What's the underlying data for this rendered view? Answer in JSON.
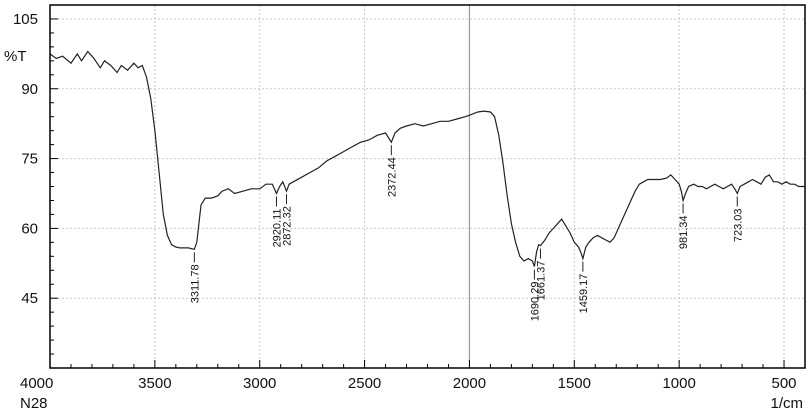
{
  "chart_data": {
    "type": "line",
    "title": "",
    "xlabel": "",
    "ylabel": "",
    "y_unit": "%T",
    "x_unit": "1/cm",
    "sample": "N28",
    "xlim": [
      4000,
      400
    ],
    "ylim": [
      30,
      108
    ],
    "x_ticks": [
      4000,
      3500,
      3000,
      2500,
      2000,
      1500,
      1000,
      500
    ],
    "y_ticks": [
      45,
      60,
      75,
      90,
      105
    ],
    "grid": true,
    "colors": {
      "line": "#222222",
      "grid": "#c8c8c8",
      "frame": "#000000"
    },
    "series": [
      {
        "points": [
          [
            4000,
            97.5
          ],
          [
            3970,
            96.5
          ],
          [
            3940,
            97
          ],
          [
            3900,
            95.5
          ],
          [
            3870,
            97.5
          ],
          [
            3850,
            96
          ],
          [
            3820,
            98
          ],
          [
            3790,
            96.5
          ],
          [
            3760,
            94.5
          ],
          [
            3740,
            96
          ],
          [
            3710,
            95
          ],
          [
            3680,
            93.5
          ],
          [
            3660,
            95
          ],
          [
            3630,
            94
          ],
          [
            3600,
            95.5
          ],
          [
            3580,
            94.5
          ],
          [
            3560,
            95
          ],
          [
            3540,
            92.5
          ],
          [
            3520,
            88
          ],
          [
            3500,
            81
          ],
          [
            3480,
            72
          ],
          [
            3460,
            63
          ],
          [
            3440,
            58.5
          ],
          [
            3420,
            56.5
          ],
          [
            3400,
            56
          ],
          [
            3380,
            55.8
          ],
          [
            3360,
            55.8
          ],
          [
            3340,
            55.8
          ],
          [
            3311.78,
            55.5
          ],
          [
            3300,
            57
          ],
          [
            3290,
            61
          ],
          [
            3280,
            65
          ],
          [
            3260,
            66.5
          ],
          [
            3230,
            66.5
          ],
          [
            3200,
            67
          ],
          [
            3180,
            68
          ],
          [
            3150,
            68.5
          ],
          [
            3120,
            67.5
          ],
          [
            3080,
            68
          ],
          [
            3040,
            68.5
          ],
          [
            3000,
            68.5
          ],
          [
            2970,
            69.5
          ],
          [
            2940,
            69.5
          ],
          [
            2920.11,
            67.5
          ],
          [
            2905,
            69
          ],
          [
            2890,
            70
          ],
          [
            2872.32,
            68
          ],
          [
            2860,
            69.5
          ],
          [
            2840,
            70
          ],
          [
            2800,
            71
          ],
          [
            2760,
            72
          ],
          [
            2720,
            73
          ],
          [
            2680,
            74.5
          ],
          [
            2640,
            75.5
          ],
          [
            2600,
            76.5
          ],
          [
            2560,
            77.5
          ],
          [
            2520,
            78.5
          ],
          [
            2480,
            79
          ],
          [
            2440,
            80
          ],
          [
            2400,
            80.5
          ],
          [
            2372.44,
            78.5
          ],
          [
            2355,
            80.5
          ],
          [
            2330,
            81.5
          ],
          [
            2300,
            82
          ],
          [
            2260,
            82.5
          ],
          [
            2220,
            82
          ],
          [
            2180,
            82.5
          ],
          [
            2140,
            83
          ],
          [
            2100,
            83
          ],
          [
            2060,
            83.5
          ],
          [
            2020,
            84
          ],
          [
            1990,
            84.5
          ],
          [
            1960,
            85
          ],
          [
            1930,
            85.2
          ],
          [
            1900,
            85
          ],
          [
            1880,
            84
          ],
          [
            1860,
            80
          ],
          [
            1840,
            74
          ],
          [
            1820,
            67
          ],
          [
            1800,
            61
          ],
          [
            1780,
            57
          ],
          [
            1760,
            54
          ],
          [
            1740,
            53
          ],
          [
            1720,
            53.5
          ],
          [
            1700,
            53
          ],
          [
            1690.29,
            51.8
          ],
          [
            1680,
            55
          ],
          [
            1670,
            56.5
          ],
          [
            1661.37,
            56.3
          ],
          [
            1640,
            57.5
          ],
          [
            1620,
            59
          ],
          [
            1600,
            60
          ],
          [
            1580,
            61
          ],
          [
            1560,
            62
          ],
          [
            1540,
            60.5
          ],
          [
            1520,
            59
          ],
          [
            1500,
            57
          ],
          [
            1480,
            56
          ],
          [
            1470,
            55
          ],
          [
            1459.17,
            53.5
          ],
          [
            1445,
            56
          ],
          [
            1430,
            57
          ],
          [
            1410,
            58
          ],
          [
            1390,
            58.5
          ],
          [
            1370,
            58
          ],
          [
            1350,
            57.5
          ],
          [
            1330,
            57
          ],
          [
            1310,
            58
          ],
          [
            1290,
            60
          ],
          [
            1270,
            62
          ],
          [
            1250,
            64
          ],
          [
            1230,
            66
          ],
          [
            1210,
            68
          ],
          [
            1190,
            69.5
          ],
          [
            1170,
            70
          ],
          [
            1150,
            70.5
          ],
          [
            1120,
            70.5
          ],
          [
            1090,
            70.5
          ],
          [
            1060,
            70.8
          ],
          [
            1040,
            71.5
          ],
          [
            1020,
            70.5
          ],
          [
            1000,
            69.5
          ],
          [
            990,
            68
          ],
          [
            981.34,
            66
          ],
          [
            970,
            67.5
          ],
          [
            955,
            69
          ],
          [
            930,
            69.5
          ],
          [
            910,
            69
          ],
          [
            890,
            69
          ],
          [
            870,
            68.5
          ],
          [
            850,
            69
          ],
          [
            830,
            69.5
          ],
          [
            810,
            69
          ],
          [
            790,
            68.5
          ],
          [
            770,
            69
          ],
          [
            750,
            69.5
          ],
          [
            735,
            68.5
          ],
          [
            723.03,
            67.5
          ],
          [
            710,
            69
          ],
          [
            690,
            69.5
          ],
          [
            670,
            70
          ],
          [
            650,
            70.5
          ],
          [
            630,
            70
          ],
          [
            610,
            69.5
          ],
          [
            590,
            71
          ],
          [
            570,
            71.5
          ],
          [
            550,
            70
          ],
          [
            530,
            70
          ],
          [
            510,
            69.5
          ],
          [
            490,
            70
          ],
          [
            470,
            69.5
          ],
          [
            450,
            69.5
          ],
          [
            430,
            69
          ],
          [
            400,
            69
          ]
        ]
      }
    ],
    "peaks": [
      {
        "x": 3311.78,
        "label": "3311.78"
      },
      {
        "x": 2920.11,
        "label": "2920.11"
      },
      {
        "x": 2872.32,
        "label": "2872.32"
      },
      {
        "x": 2372.44,
        "label": "2372.44"
      },
      {
        "x": 1690.29,
        "label": "1690.29"
      },
      {
        "x": 1661.37,
        "label": "1661.37"
      },
      {
        "x": 1459.17,
        "label": "1459.17"
      },
      {
        "x": 981.34,
        "label": "981.34"
      },
      {
        "x": 723.03,
        "label": "723.03"
      }
    ]
  }
}
